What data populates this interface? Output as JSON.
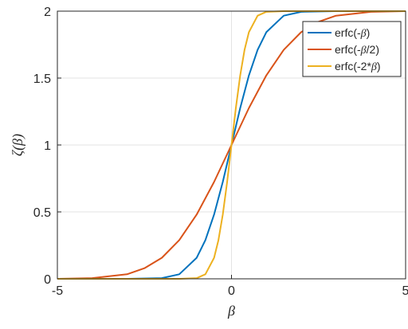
{
  "chart_data": {
    "type": "line",
    "xlabel": "β",
    "ylabel": "ζ(β)",
    "xlim": [
      -5,
      5
    ],
    "ylim": [
      0,
      2
    ],
    "xticks": [
      -5,
      0,
      5
    ],
    "yticks": [
      0,
      0.5,
      1,
      1.5,
      2
    ],
    "xtick_labels": [
      "-5",
      "0",
      "5"
    ],
    "ytick_labels": [
      "0",
      "0.5",
      "1",
      "1.5",
      "2"
    ],
    "grid": true,
    "legend_position": "top-right",
    "series": [
      {
        "name": "erfc(-β)",
        "name_prefix": "erfc(-",
        "name_greek": "β",
        "name_suffix": ")",
        "color": "#0072bd",
        "x": [
          -5,
          -3,
          -2,
          -1.5,
          -1,
          -0.75,
          -0.5,
          -0.25,
          0,
          0.25,
          0.5,
          0.75,
          1,
          1.5,
          2,
          3,
          5
        ],
        "y": [
          0,
          0,
          0.005,
          0.034,
          0.157,
          0.289,
          0.48,
          0.724,
          1,
          1.276,
          1.52,
          1.711,
          1.843,
          1.966,
          1.995,
          2,
          2
        ]
      },
      {
        "name": "erfc(-β/2)",
        "name_prefix": "erfc(-",
        "name_greek": "β",
        "name_suffix": "/2)",
        "color": "#d95319",
        "x": [
          -5,
          -4,
          -3,
          -2.5,
          -2,
          -1.5,
          -1,
          -0.5,
          0,
          0.5,
          1,
          1.5,
          2,
          2.5,
          3,
          4,
          5
        ],
        "y": [
          0,
          0.005,
          0.034,
          0.079,
          0.157,
          0.289,
          0.48,
          0.724,
          1,
          1.276,
          1.52,
          1.711,
          1.843,
          1.921,
          1.966,
          1.995,
          2
        ]
      },
      {
        "name": "erfc(-2*β)",
        "name_prefix": "erfc(-2*",
        "name_greek": "β",
        "name_suffix": ")",
        "color": "#edb120",
        "x": [
          -5,
          -1.5,
          -1,
          -0.75,
          -0.5,
          -0.375,
          -0.25,
          -0.125,
          0,
          0.125,
          0.25,
          0.375,
          0.5,
          0.75,
          1,
          1.5,
          5
        ],
        "y": [
          0,
          0,
          0.005,
          0.034,
          0.157,
          0.289,
          0.48,
          0.724,
          1,
          1.276,
          1.52,
          1.711,
          1.843,
          1.966,
          1.995,
          2,
          2
        ]
      }
    ]
  }
}
